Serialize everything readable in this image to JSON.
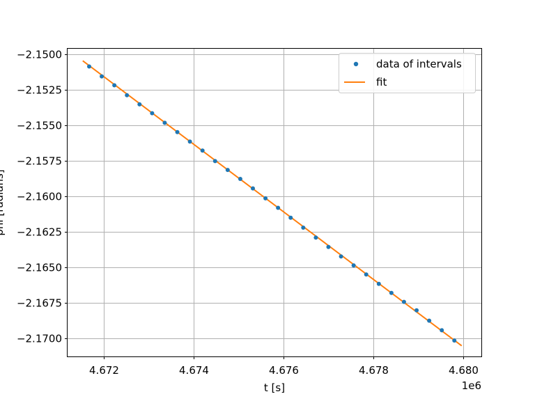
{
  "chart_data": {
    "type": "scatter",
    "xlabel": "t [s]",
    "ylabel": "phi [radians]",
    "x_offset_label": "1e6",
    "xlim": [
      4671200,
      4680400
    ],
    "ylim": [
      -2.1713,
      -2.1496
    ],
    "xticks": [
      4672000,
      4674000,
      4676000,
      4678000,
      4680000
    ],
    "xtick_labels": [
      "4.672",
      "4.674",
      "4.676",
      "4.678",
      "4.680"
    ],
    "yticks": [
      -2.15,
      -2.1525,
      -2.155,
      -2.1575,
      -2.16,
      -2.1625,
      -2.165,
      -2.1675,
      -2.17
    ],
    "ytick_labels": [
      "−2.1500",
      "−2.1525",
      "−2.1550",
      "−2.1575",
      "−2.1600",
      "−2.1625",
      "−2.1650",
      "−2.1675",
      "−2.1700"
    ],
    "grid": true,
    "legend_position": "upper right",
    "series": [
      {
        "name": "data of intervals",
        "kind": "scatter",
        "color": "#1f77b4",
        "x": [
          4671680,
          4671960,
          4672240,
          4672520,
          4672800,
          4673080,
          4673360,
          4673640,
          4673920,
          4674200,
          4674480,
          4674760,
          4675040,
          4675320,
          4675600,
          4675880,
          4676160,
          4676440,
          4676720,
          4677000,
          4677280,
          4677560,
          4677840,
          4678120,
          4678400,
          4678680,
          4678960,
          4679240,
          4679520,
          4679800
        ],
        "y": [
          -2.15085,
          -2.15155,
          -2.15218,
          -2.15288,
          -2.15352,
          -2.15415,
          -2.15482,
          -2.15548,
          -2.15615,
          -2.15678,
          -2.15752,
          -2.15815,
          -2.15878,
          -2.15945,
          -2.16015,
          -2.16082,
          -2.16152,
          -2.16222,
          -2.16292,
          -2.16358,
          -2.16425,
          -2.16488,
          -2.16552,
          -2.16618,
          -2.16682,
          -2.16745,
          -2.16805,
          -2.16878,
          -2.16945,
          -2.17018
        ]
      },
      {
        "name": "fit",
        "kind": "line",
        "color": "#ff7f0e",
        "x": [
          4671550,
          4679950
        ],
        "y": [
          -2.15048,
          -2.17052
        ]
      }
    ]
  }
}
